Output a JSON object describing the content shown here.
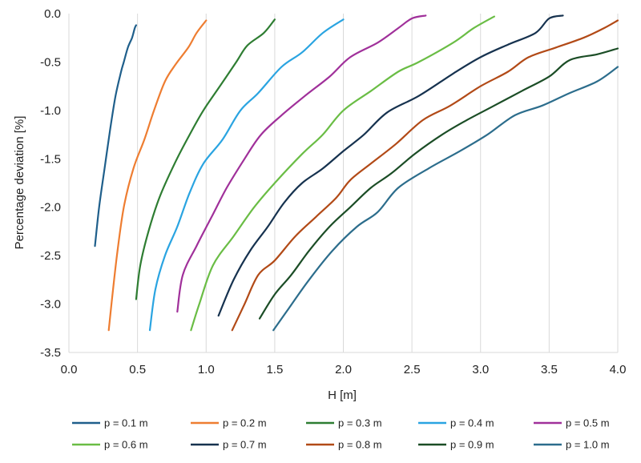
{
  "chart_data": {
    "type": "line",
    "title": "",
    "xlabel": "H [m]",
    "ylabel": "Percentage deviation [%]",
    "xlim": [
      0.0,
      4.0
    ],
    "ylim": [
      -3.5,
      0.0
    ],
    "x_ticks": [
      "0.0",
      "0.5",
      "1.0",
      "1.5",
      "2.0",
      "2.5",
      "3.0",
      "3.5",
      "4.0"
    ],
    "y_ticks": [
      "0.0",
      "-0.5",
      "-1.0",
      "-1.5",
      "-2.0",
      "-2.5",
      "-3.0",
      "-3.5"
    ],
    "grid": "vertical",
    "legend_position": "bottom",
    "series": [
      {
        "name": "p = 0.1 m",
        "color": "#1f5f8b",
        "points": [
          [
            0.19,
            -2.4
          ],
          [
            0.22,
            -2.0
          ],
          [
            0.26,
            -1.6
          ],
          [
            0.3,
            -1.2
          ],
          [
            0.34,
            -0.85
          ],
          [
            0.38,
            -0.6
          ],
          [
            0.4,
            -0.5
          ],
          [
            0.43,
            -0.35
          ],
          [
            0.46,
            -0.25
          ],
          [
            0.48,
            -0.15
          ],
          [
            0.49,
            -0.12
          ]
        ]
      },
      {
        "name": "p = 0.2 m",
        "color": "#ee7d31",
        "points": [
          [
            0.29,
            -3.27
          ],
          [
            0.31,
            -3.0
          ],
          [
            0.35,
            -2.5
          ],
          [
            0.4,
            -2.0
          ],
          [
            0.47,
            -1.6
          ],
          [
            0.55,
            -1.3
          ],
          [
            0.62,
            -1.0
          ],
          [
            0.7,
            -0.7
          ],
          [
            0.78,
            -0.52
          ],
          [
            0.87,
            -0.35
          ],
          [
            0.93,
            -0.2
          ],
          [
            1.0,
            -0.07
          ]
        ]
      },
      {
        "name": "p = 0.3 m",
        "color": "#2e7d32",
        "points": [
          [
            0.49,
            -2.95
          ],
          [
            0.52,
            -2.6
          ],
          [
            0.58,
            -2.25
          ],
          [
            0.66,
            -1.9
          ],
          [
            0.77,
            -1.55
          ],
          [
            0.88,
            -1.25
          ],
          [
            0.98,
            -1.0
          ],
          [
            1.1,
            -0.75
          ],
          [
            1.22,
            -0.5
          ],
          [
            1.3,
            -0.33
          ],
          [
            1.42,
            -0.2
          ],
          [
            1.5,
            -0.06
          ]
        ]
      },
      {
        "name": "p = 0.4 m",
        "color": "#2aa4e1",
        "points": [
          [
            0.59,
            -3.27
          ],
          [
            0.63,
            -2.85
          ],
          [
            0.7,
            -2.5
          ],
          [
            0.79,
            -2.2
          ],
          [
            0.88,
            -1.85
          ],
          [
            0.98,
            -1.55
          ],
          [
            1.12,
            -1.3
          ],
          [
            1.25,
            -1.0
          ],
          [
            1.38,
            -0.82
          ],
          [
            1.55,
            -0.55
          ],
          [
            1.7,
            -0.4
          ],
          [
            1.85,
            -0.2
          ],
          [
            2.0,
            -0.06
          ]
        ]
      },
      {
        "name": "p = 0.5 m",
        "color": "#a0309a",
        "points": [
          [
            0.79,
            -3.08
          ],
          [
            0.83,
            -2.7
          ],
          [
            0.93,
            -2.4
          ],
          [
            1.04,
            -2.1
          ],
          [
            1.15,
            -1.8
          ],
          [
            1.28,
            -1.5
          ],
          [
            1.4,
            -1.25
          ],
          [
            1.55,
            -1.05
          ],
          [
            1.72,
            -0.85
          ],
          [
            1.9,
            -0.65
          ],
          [
            2.05,
            -0.45
          ],
          [
            2.25,
            -0.3
          ],
          [
            2.4,
            -0.15
          ],
          [
            2.5,
            -0.05
          ],
          [
            2.6,
            -0.02
          ]
        ]
      },
      {
        "name": "p = 0.6 m",
        "color": "#6abd45",
        "points": [
          [
            0.89,
            -3.27
          ],
          [
            0.95,
            -3.0
          ],
          [
            1.05,
            -2.6
          ],
          [
            1.2,
            -2.3
          ],
          [
            1.35,
            -2.0
          ],
          [
            1.5,
            -1.75
          ],
          [
            1.7,
            -1.45
          ],
          [
            1.85,
            -1.25
          ],
          [
            2.0,
            -1.0
          ],
          [
            2.2,
            -0.8
          ],
          [
            2.4,
            -0.6
          ],
          [
            2.55,
            -0.5
          ],
          [
            2.8,
            -0.3
          ],
          [
            2.95,
            -0.15
          ],
          [
            3.1,
            -0.03
          ]
        ]
      },
      {
        "name": "p = 0.7 m",
        "color": "#16324f",
        "points": [
          [
            1.09,
            -3.12
          ],
          [
            1.2,
            -2.75
          ],
          [
            1.32,
            -2.45
          ],
          [
            1.45,
            -2.2
          ],
          [
            1.57,
            -1.95
          ],
          [
            1.7,
            -1.75
          ],
          [
            1.85,
            -1.6
          ],
          [
            2.0,
            -1.42
          ],
          [
            2.15,
            -1.25
          ],
          [
            2.32,
            -1.02
          ],
          [
            2.55,
            -0.85
          ],
          [
            2.8,
            -0.62
          ],
          [
            3.0,
            -0.45
          ],
          [
            3.2,
            -0.32
          ],
          [
            3.4,
            -0.2
          ],
          [
            3.5,
            -0.05
          ],
          [
            3.6,
            -0.02
          ]
        ]
      },
      {
        "name": "p = 0.8 m",
        "color": "#b24a17",
        "points": [
          [
            1.19,
            -3.27
          ],
          [
            1.28,
            -3.0
          ],
          [
            1.38,
            -2.7
          ],
          [
            1.5,
            -2.55
          ],
          [
            1.65,
            -2.3
          ],
          [
            1.8,
            -2.1
          ],
          [
            1.95,
            -1.9
          ],
          [
            2.05,
            -1.72
          ],
          [
            2.2,
            -1.55
          ],
          [
            2.38,
            -1.35
          ],
          [
            2.58,
            -1.1
          ],
          [
            2.78,
            -0.95
          ],
          [
            3.0,
            -0.75
          ],
          [
            3.2,
            -0.6
          ],
          [
            3.35,
            -0.45
          ],
          [
            3.55,
            -0.35
          ],
          [
            3.75,
            -0.25
          ],
          [
            3.9,
            -0.15
          ],
          [
            4.0,
            -0.07
          ]
        ]
      },
      {
        "name": "p = 0.9 m",
        "color": "#1b4d26",
        "points": [
          [
            1.39,
            -3.15
          ],
          [
            1.5,
            -2.9
          ],
          [
            1.62,
            -2.7
          ],
          [
            1.75,
            -2.45
          ],
          [
            1.9,
            -2.2
          ],
          [
            2.05,
            -2.0
          ],
          [
            2.2,
            -1.8
          ],
          [
            2.35,
            -1.65
          ],
          [
            2.52,
            -1.45
          ],
          [
            2.72,
            -1.25
          ],
          [
            2.9,
            -1.1
          ],
          [
            3.1,
            -0.95
          ],
          [
            3.3,
            -0.8
          ],
          [
            3.5,
            -0.65
          ],
          [
            3.65,
            -0.48
          ],
          [
            3.85,
            -0.42
          ],
          [
            4.0,
            -0.36
          ]
        ]
      },
      {
        "name": "p = 1.0 m",
        "color": "#2c6d8c",
        "points": [
          [
            1.49,
            -3.27
          ],
          [
            1.6,
            -3.05
          ],
          [
            1.75,
            -2.75
          ],
          [
            1.92,
            -2.45
          ],
          [
            2.1,
            -2.2
          ],
          [
            2.25,
            -2.05
          ],
          [
            2.4,
            -1.8
          ],
          [
            2.62,
            -1.6
          ],
          [
            2.85,
            -1.42
          ],
          [
            3.05,
            -1.25
          ],
          [
            3.25,
            -1.05
          ],
          [
            3.45,
            -0.95
          ],
          [
            3.65,
            -0.82
          ],
          [
            3.85,
            -0.7
          ],
          [
            4.0,
            -0.55
          ]
        ]
      }
    ]
  }
}
